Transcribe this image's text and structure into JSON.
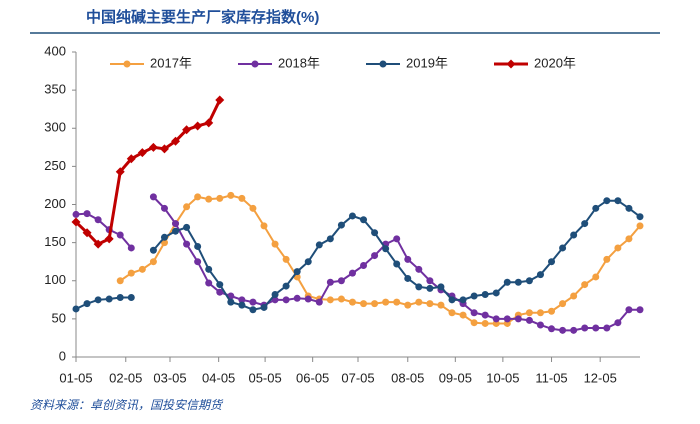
{
  "chart_data": {
    "type": "line",
    "title": "中国纯碱主要生产厂家库存指数(%)",
    "source": "资料来源：卓创资讯，国投安信期货",
    "x": [
      0,
      1,
      2,
      3,
      4,
      5,
      6,
      7,
      8,
      9,
      10,
      11,
      12,
      13,
      14,
      15,
      16,
      17,
      18,
      19,
      20,
      21,
      22,
      23,
      24,
      25,
      26,
      27,
      28,
      29,
      30,
      31,
      32,
      33,
      34,
      35,
      36,
      37,
      38,
      39,
      40,
      41,
      42,
      43,
      44,
      45,
      46,
      47,
      48,
      49,
      50,
      51
    ],
    "xlim": [
      0,
      51
    ],
    "xticks": [
      {
        "value": 0,
        "label": "01-05"
      },
      {
        "value": 4.5,
        "label": "02-05"
      },
      {
        "value": 8.5,
        "label": "03-05"
      },
      {
        "value": 12.9,
        "label": "04-05"
      },
      {
        "value": 17.1,
        "label": "05-05"
      },
      {
        "value": 21.4,
        "label": "06-05"
      },
      {
        "value": 25.5,
        "label": "07-05"
      },
      {
        "value": 30,
        "label": "08-05"
      },
      {
        "value": 34.3,
        "label": "09-05"
      },
      {
        "value": 38.6,
        "label": "10-05"
      },
      {
        "value": 43,
        "label": "11-05"
      },
      {
        "value": 47.4,
        "label": "12-05"
      }
    ],
    "ylim": [
      0,
      400
    ],
    "yticks": [
      0,
      50,
      100,
      150,
      200,
      250,
      300,
      350,
      400
    ],
    "legend": "top",
    "series": [
      {
        "name": "2017年",
        "color": "#f4a040",
        "marker": "circle",
        "values": [
          null,
          null,
          null,
          null,
          100,
          110,
          115,
          125,
          150,
          175,
          197,
          210,
          207,
          208,
          212,
          208,
          195,
          172,
          148,
          128,
          105,
          80,
          76,
          75,
          76,
          72,
          70,
          70,
          72,
          72,
          68,
          72,
          70,
          68,
          58,
          55,
          45,
          44,
          44,
          44,
          55,
          58,
          58,
          60,
          70,
          80,
          95,
          105,
          128,
          143,
          155,
          172
        ]
      },
      {
        "name": "2018年",
        "color": "#7030a0",
        "marker": "circle",
        "values": [
          187,
          188,
          180,
          167,
          160,
          143,
          null,
          210,
          195,
          175,
          148,
          125,
          97,
          85,
          80,
          75,
          72,
          68,
          75,
          75,
          77,
          76,
          72,
          98,
          100,
          110,
          120,
          133,
          148,
          155,
          128,
          115,
          100,
          88,
          80,
          70,
          58,
          55,
          50,
          50,
          50,
          48,
          42,
          37,
          35,
          35,
          38,
          38,
          38,
          45,
          62,
          62
        ]
      },
      {
        "name": "2019年",
        "color": "#1f4e79",
        "marker": "circle",
        "values": [
          63,
          70,
          75,
          76,
          78,
          78,
          null,
          140,
          157,
          165,
          170,
          145,
          115,
          95,
          72,
          68,
          62,
          65,
          82,
          93,
          112,
          125,
          147,
          155,
          173,
          185,
          180,
          163,
          142,
          122,
          103,
          92,
          90,
          92,
          75,
          75,
          80,
          82,
          84,
          98,
          98,
          100,
          108,
          125,
          143,
          160,
          175,
          195,
          205,
          205,
          195,
          184
        ]
      },
      {
        "name": "2020年",
        "color": "#c00000",
        "marker": "diamond",
        "values": [
          177,
          163,
          148,
          155,
          243,
          260,
          268,
          275,
          273,
          283,
          298,
          303,
          307,
          337,
          null,
          null,
          null,
          null,
          null,
          null,
          null,
          null,
          null,
          null,
          null,
          null,
          null,
          null,
          null,
          null,
          null,
          null,
          null,
          null,
          null,
          null,
          null,
          null,
          null,
          null,
          null,
          null,
          null,
          null,
          null,
          null,
          null,
          null,
          null,
          null,
          null,
          null
        ]
      }
    ]
  }
}
